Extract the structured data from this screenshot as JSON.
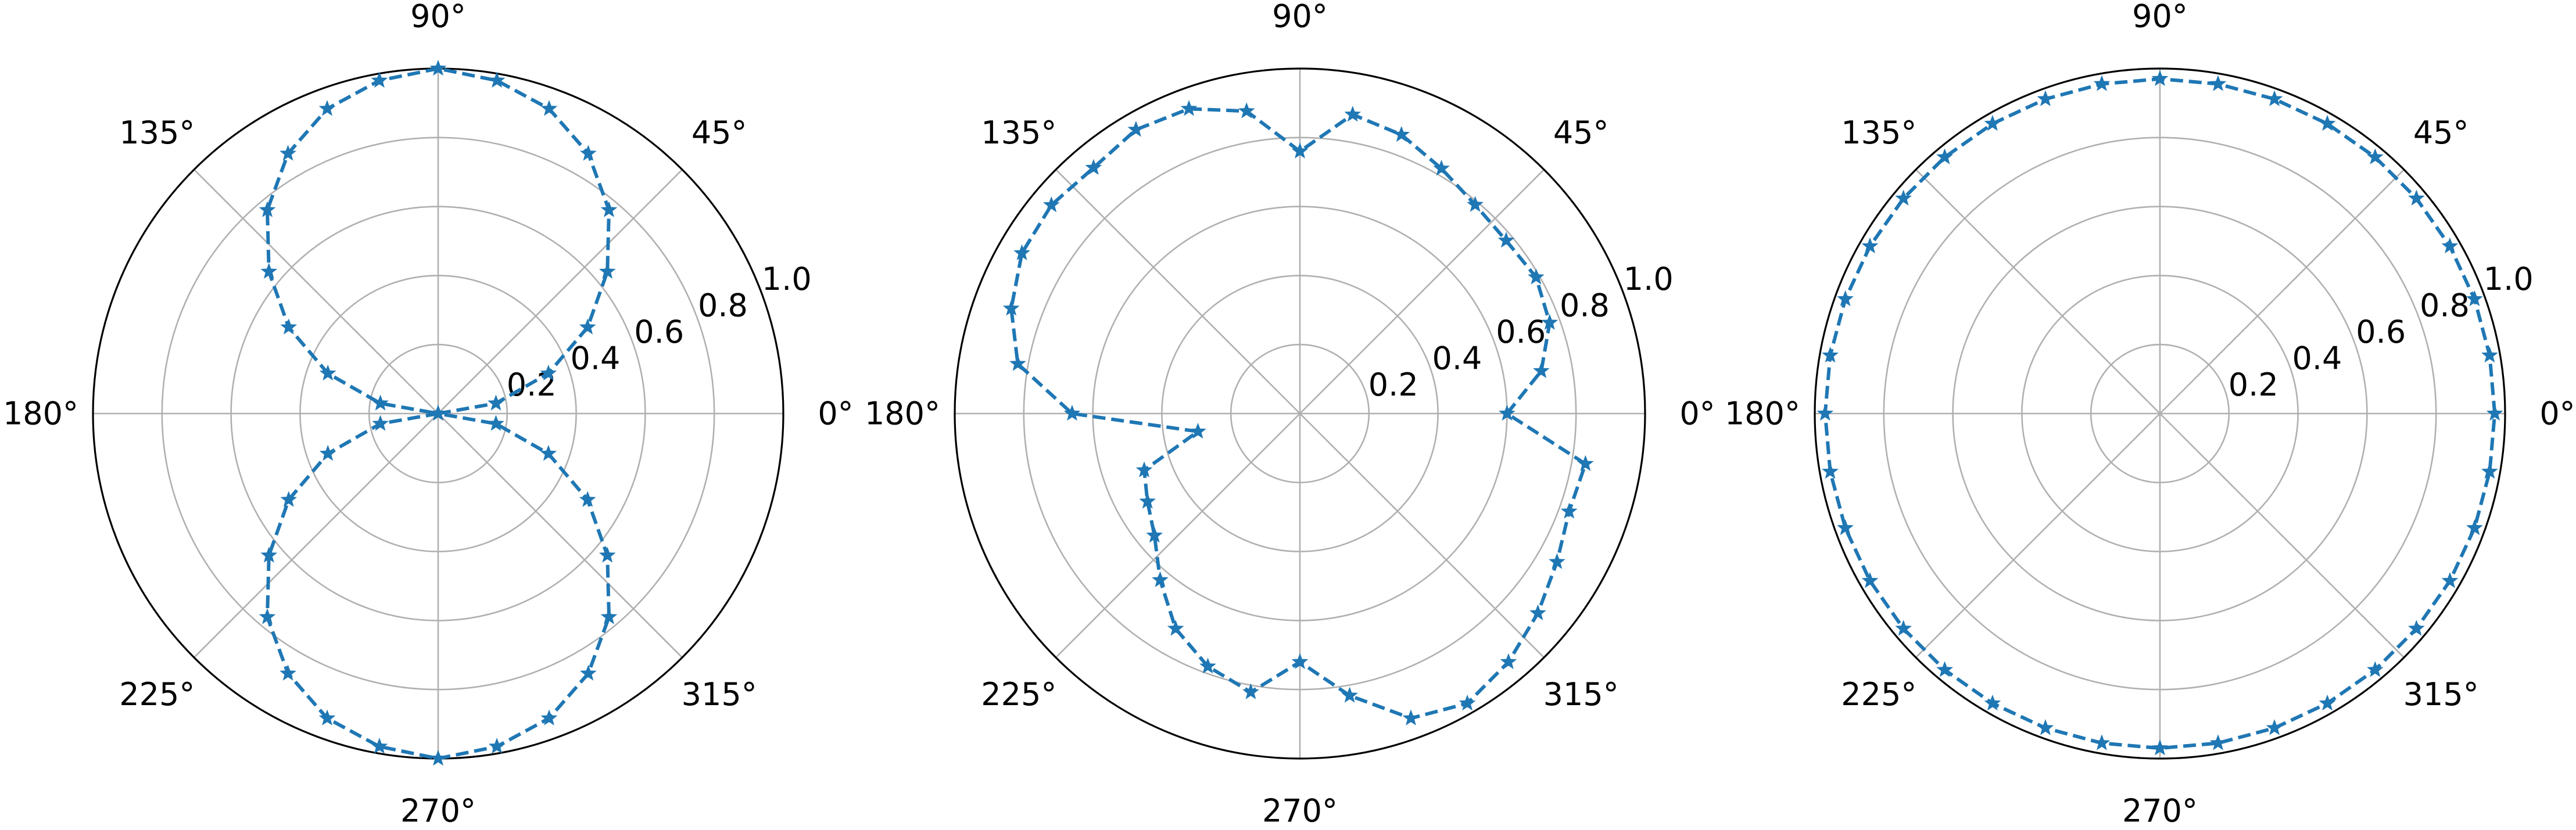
{
  "colors": {
    "series": "#1f77b4",
    "grid": "#b0b0b0",
    "frame": "#000000"
  },
  "chart_data": [
    {
      "type": "line",
      "projection": "polar",
      "marker": "star",
      "linestyle": "dashed",
      "grid": true,
      "rlim": [
        0,
        1.0
      ],
      "r_ticks": [
        "0.2",
        "0.4",
        "0.6",
        "0.8",
        "1.0"
      ],
      "theta_ticks": [
        "0°",
        "45°",
        "90°",
        "135°",
        "180°",
        "225°",
        "270°",
        "315°"
      ],
      "theta_deg": [
        0,
        10,
        20,
        30,
        40,
        50,
        60,
        70,
        80,
        90,
        100,
        110,
        120,
        130,
        140,
        150,
        160,
        170,
        180,
        190,
        200,
        210,
        220,
        230,
        240,
        250,
        260,
        270,
        280,
        290,
        300,
        310,
        320,
        330,
        340,
        350
      ],
      "r": [
        0.0,
        0.17,
        0.34,
        0.5,
        0.64,
        0.77,
        0.87,
        0.94,
        0.98,
        1.0,
        0.98,
        0.94,
        0.87,
        0.77,
        0.64,
        0.5,
        0.34,
        0.17,
        0.0,
        0.17,
        0.34,
        0.5,
        0.64,
        0.77,
        0.87,
        0.94,
        0.98,
        1.0,
        0.98,
        0.94,
        0.87,
        0.77,
        0.64,
        0.5,
        0.34,
        0.17
      ]
    },
    {
      "type": "line",
      "projection": "polar",
      "marker": "star",
      "linestyle": "dashed",
      "grid": true,
      "rlim": [
        0,
        1.0
      ],
      "r_ticks": [
        "0.2",
        "0.4",
        "0.6",
        "0.8",
        "1.0"
      ],
      "theta_ticks": [
        "0°",
        "45°",
        "90°",
        "135°",
        "180°",
        "225°",
        "270°",
        "315°"
      ],
      "theta_deg": [
        0,
        10,
        20,
        30,
        40,
        50,
        60,
        70,
        80,
        90,
        100,
        110,
        120,
        130,
        140,
        150,
        160,
        170,
        180,
        190,
        200,
        210,
        220,
        230,
        240,
        250,
        260,
        270,
        280,
        290,
        300,
        310,
        320,
        330,
        340,
        350
      ],
      "r": [
        0.6,
        0.71,
        0.77,
        0.79,
        0.78,
        0.79,
        0.82,
        0.86,
        0.88,
        0.76,
        0.89,
        0.94,
        0.95,
        0.93,
        0.94,
        0.93,
        0.89,
        0.83,
        0.66,
        0.3,
        0.48,
        0.51,
        0.55,
        0.63,
        0.72,
        0.78,
        0.82,
        0.72,
        0.83,
        0.94,
        0.97,
        0.94,
        0.9,
        0.86,
        0.83,
        0.84
      ]
    },
    {
      "type": "line",
      "projection": "polar",
      "marker": "star",
      "linestyle": "dashed",
      "grid": true,
      "rlim": [
        0,
        1.0
      ],
      "r_ticks": [
        "0.2",
        "0.4",
        "0.6",
        "0.8",
        "1.0"
      ],
      "theta_ticks": [
        "0°",
        "45°",
        "90°",
        "135°",
        "180°",
        "225°",
        "270°",
        "315°"
      ],
      "theta_deg": [
        0,
        10,
        20,
        30,
        40,
        50,
        60,
        70,
        80,
        90,
        100,
        110,
        120,
        130,
        140,
        150,
        160,
        170,
        180,
        190,
        200,
        210,
        220,
        230,
        240,
        250,
        260,
        270,
        280,
        290,
        300,
        310,
        320,
        330,
        340,
        350
      ],
      "r": [
        0.97,
        0.97,
        0.97,
        0.97,
        0.97,
        0.97,
        0.97,
        0.97,
        0.97,
        0.97,
        0.97,
        0.97,
        0.97,
        0.97,
        0.97,
        0.97,
        0.97,
        0.97,
        0.97,
        0.97,
        0.97,
        0.97,
        0.97,
        0.97,
        0.97,
        0.97,
        0.97,
        0.97,
        0.97,
        0.97,
        0.97,
        0.97,
        0.97,
        0.97,
        0.97,
        0.97
      ]
    }
  ]
}
